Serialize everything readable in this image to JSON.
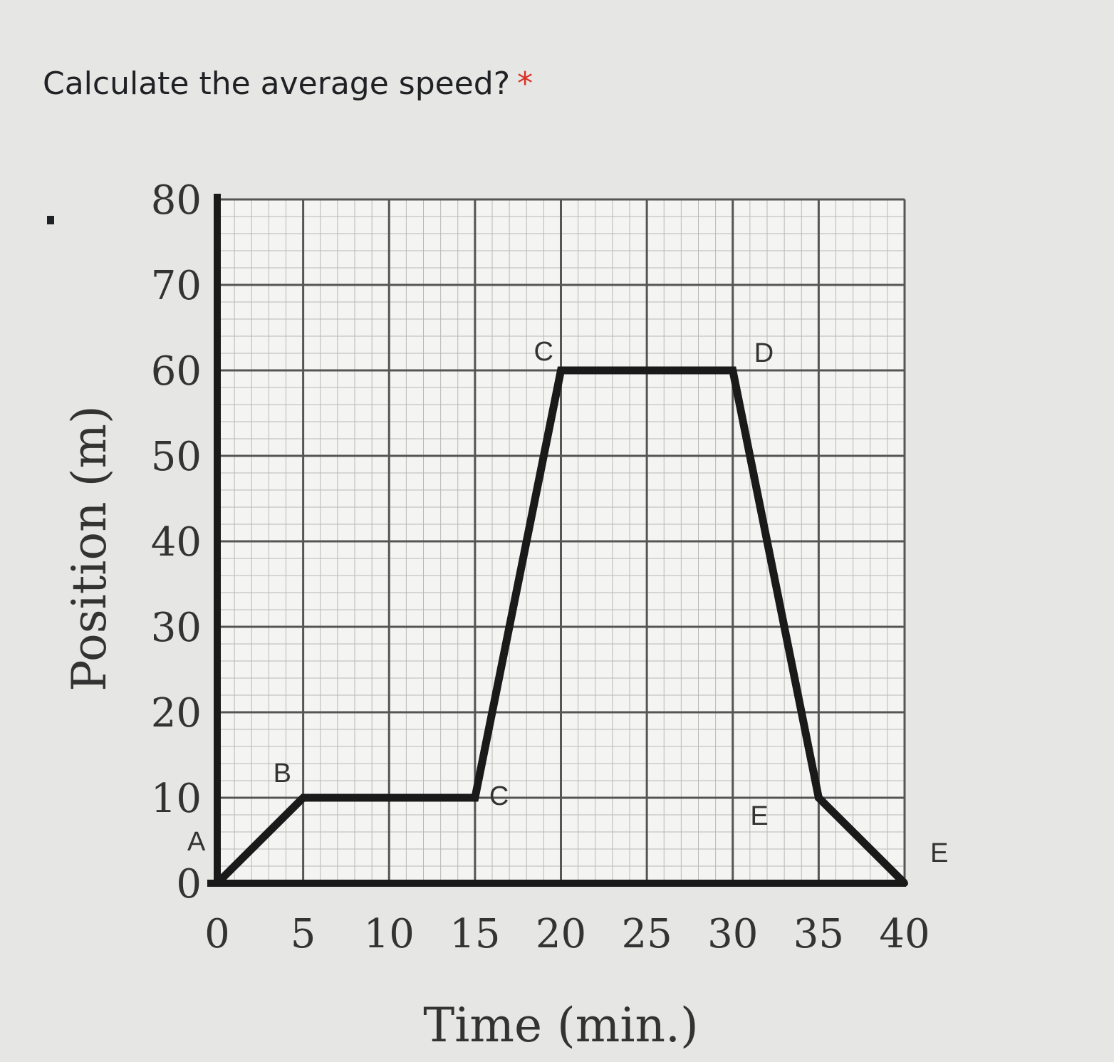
{
  "question": {
    "text": "Calculate the average speed?",
    "required_mark": "*"
  },
  "colors": {
    "required": "#d93025",
    "line": "#1a1a1a",
    "grid": "#555555",
    "plot_bg": "#f4f4f2"
  },
  "chart_data": {
    "type": "line",
    "title": "",
    "xlabel": "Time (min.)",
    "ylabel": "Position (m)",
    "xlim": [
      0,
      40
    ],
    "ylim": [
      0,
      80
    ],
    "x_ticks": [
      0,
      5,
      10,
      15,
      20,
      25,
      30,
      35,
      40
    ],
    "y_ticks": [
      0,
      10,
      20,
      30,
      40,
      50,
      60,
      70,
      80
    ],
    "grid": true,
    "series": [
      {
        "x": [
          0,
          5,
          15,
          20,
          30,
          35,
          40
        ],
        "y": [
          0,
          10,
          10,
          60,
          60,
          10,
          0
        ]
      }
    ],
    "annotations": [
      {
        "text": "A",
        "x": 0,
        "y": 0
      },
      {
        "text": "B",
        "x": 5,
        "y": 10
      },
      {
        "text": "C",
        "x": 15,
        "y": 10
      },
      {
        "text": "C",
        "x": 20,
        "y": 60
      },
      {
        "text": "D",
        "x": 30,
        "y": 60
      },
      {
        "text": "E",
        "x": 35,
        "y": 10
      },
      {
        "text": "E",
        "x": 40,
        "y": 0
      }
    ]
  }
}
